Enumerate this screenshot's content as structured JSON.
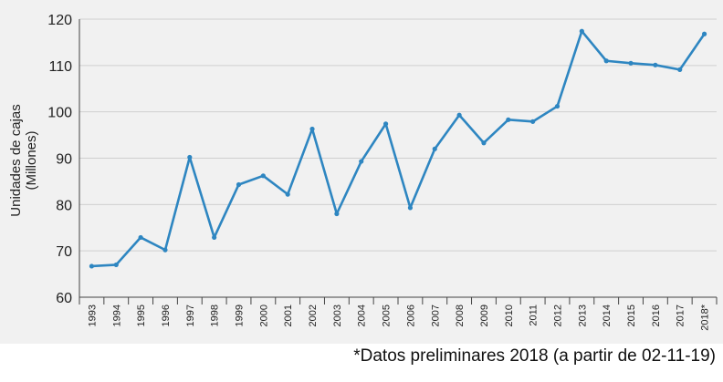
{
  "chart_data": {
    "type": "line",
    "title": "",
    "ylabel_line1": "Unidades de cajas",
    "ylabel_line2": "(Millones)",
    "xlabel": "",
    "ylim": [
      60,
      120
    ],
    "yticks": [
      60,
      70,
      80,
      90,
      100,
      110,
      120
    ],
    "categories": [
      "1993",
      "1994",
      "1995",
      "1996",
      "1997",
      "1998",
      "1999",
      "2000",
      "2001",
      "2002",
      "2003",
      "2004",
      "2005",
      "2006",
      "2007",
      "2008",
      "2009",
      "2010",
      "2011",
      "2012",
      "2013",
      "2014",
      "2015",
      "2016",
      "2017",
      "2018*"
    ],
    "series": [
      {
        "name": "Unidades de cajas",
        "color": "#2e86c1",
        "values": [
          66.7,
          67.0,
          72.9,
          70.2,
          90.2,
          72.9,
          84.3,
          86.2,
          82.2,
          96.3,
          78.0,
          89.3,
          97.4,
          79.3,
          92.0,
          99.3,
          93.3,
          98.3,
          97.9,
          101.2,
          117.4,
          111.0,
          110.5,
          110.1,
          109.1,
          116.8
        ]
      }
    ],
    "grid": true
  },
  "footnote": "*Datos preliminares 2018 (a partir de 02-11-19)"
}
